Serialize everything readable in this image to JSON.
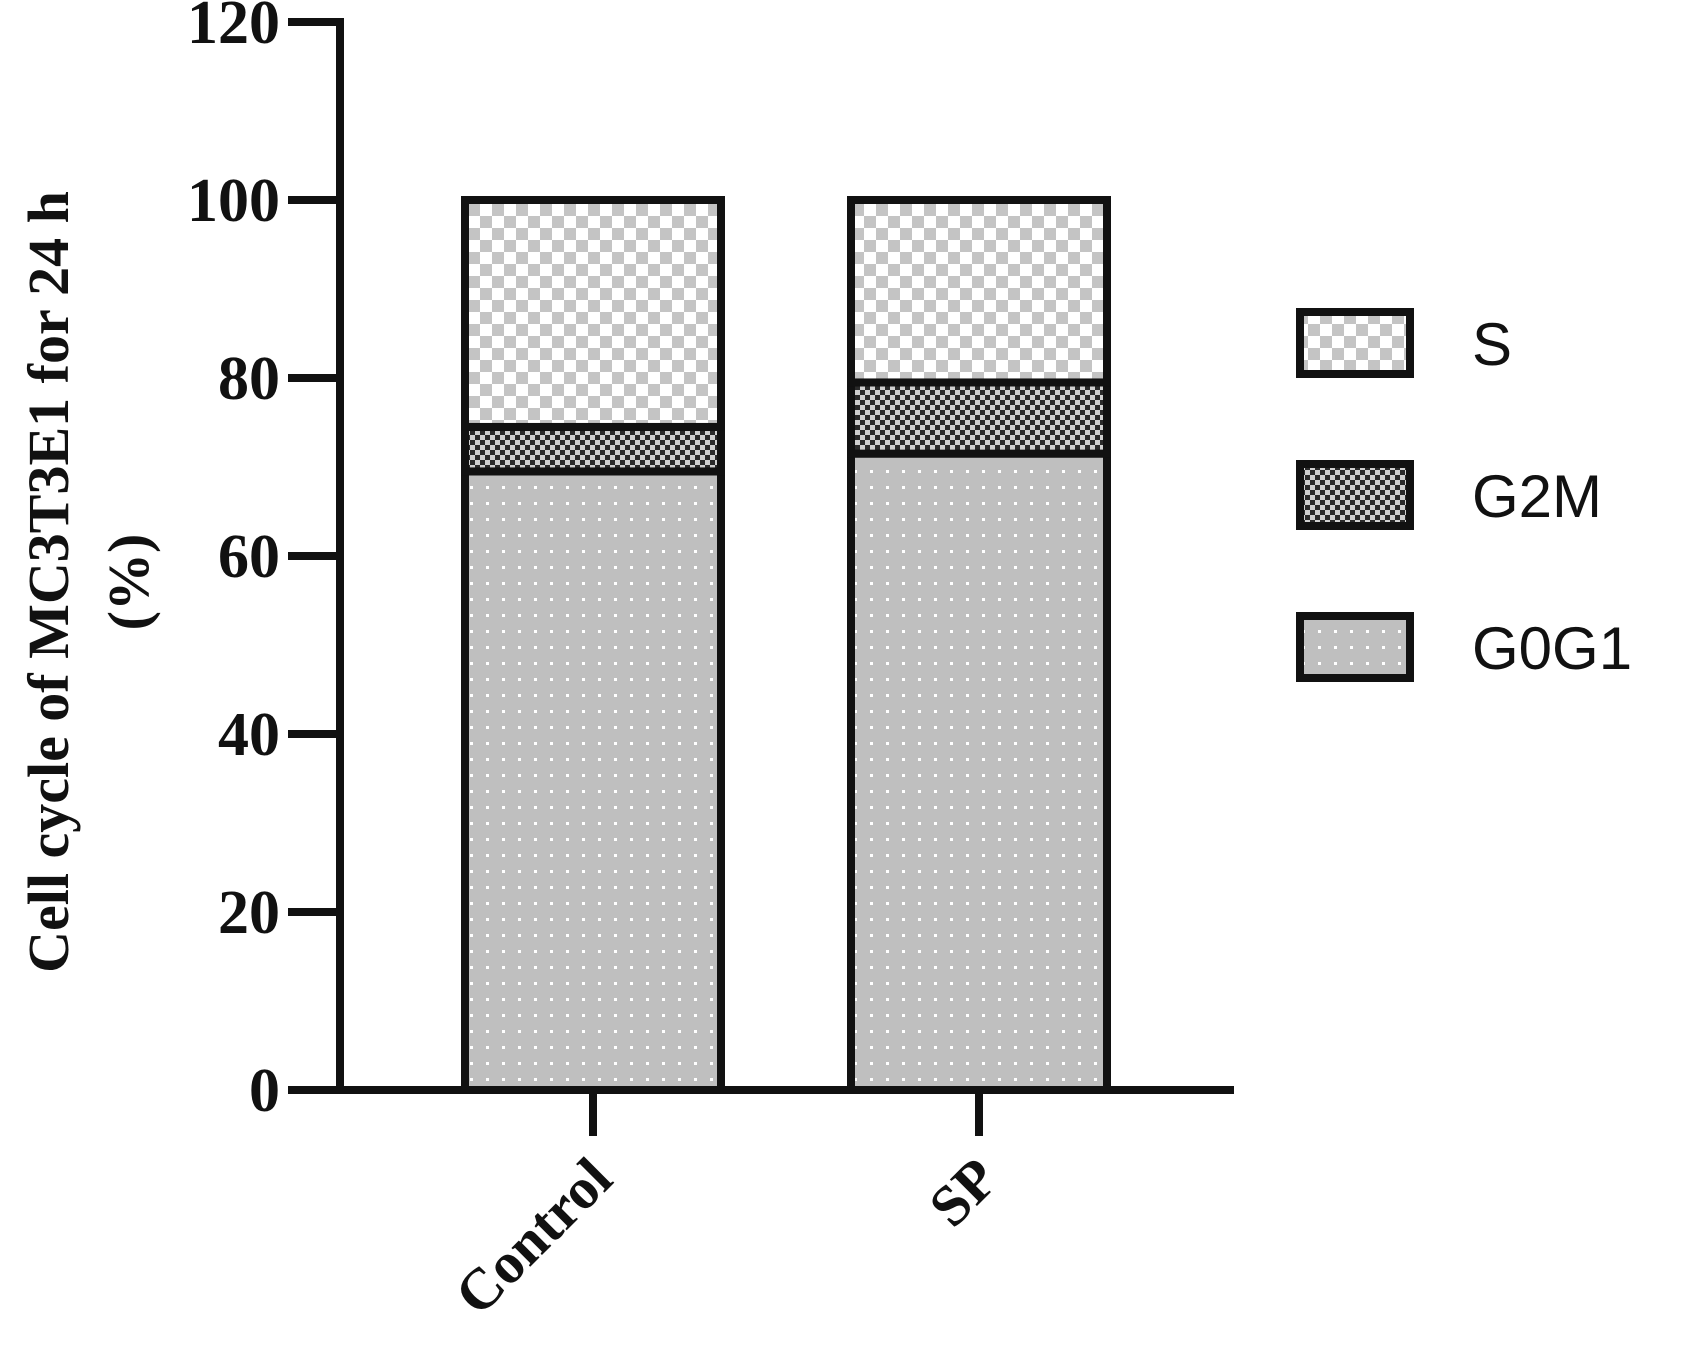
{
  "chart_data": {
    "type": "bar",
    "stacked": true,
    "categories": [
      "Control",
      "SP"
    ],
    "series": [
      {
        "name": "G0G1",
        "values": [
          69.5,
          71.5
        ],
        "pattern": "dots",
        "color": "#c0c0c0"
      },
      {
        "name": "G2M",
        "values": [
          5.0,
          8.0
        ],
        "pattern": "fine-checker",
        "color": "#555555"
      },
      {
        "name": "S",
        "values": [
          25.5,
          20.5
        ],
        "pattern": "checker",
        "color": "#c0c0c0"
      }
    ],
    "ylabel_line1": "Cell cycle of MC3T3E1 for 24 h",
    "ylabel_line2": "(%)",
    "xlabel": "",
    "title": "",
    "ylim": [
      0,
      120
    ],
    "yticks": [
      0,
      20,
      40,
      60,
      80,
      100,
      120
    ],
    "legend_position": "right",
    "legend_order": [
      "S",
      "G2M",
      "G0G1"
    ],
    "grid": false
  }
}
